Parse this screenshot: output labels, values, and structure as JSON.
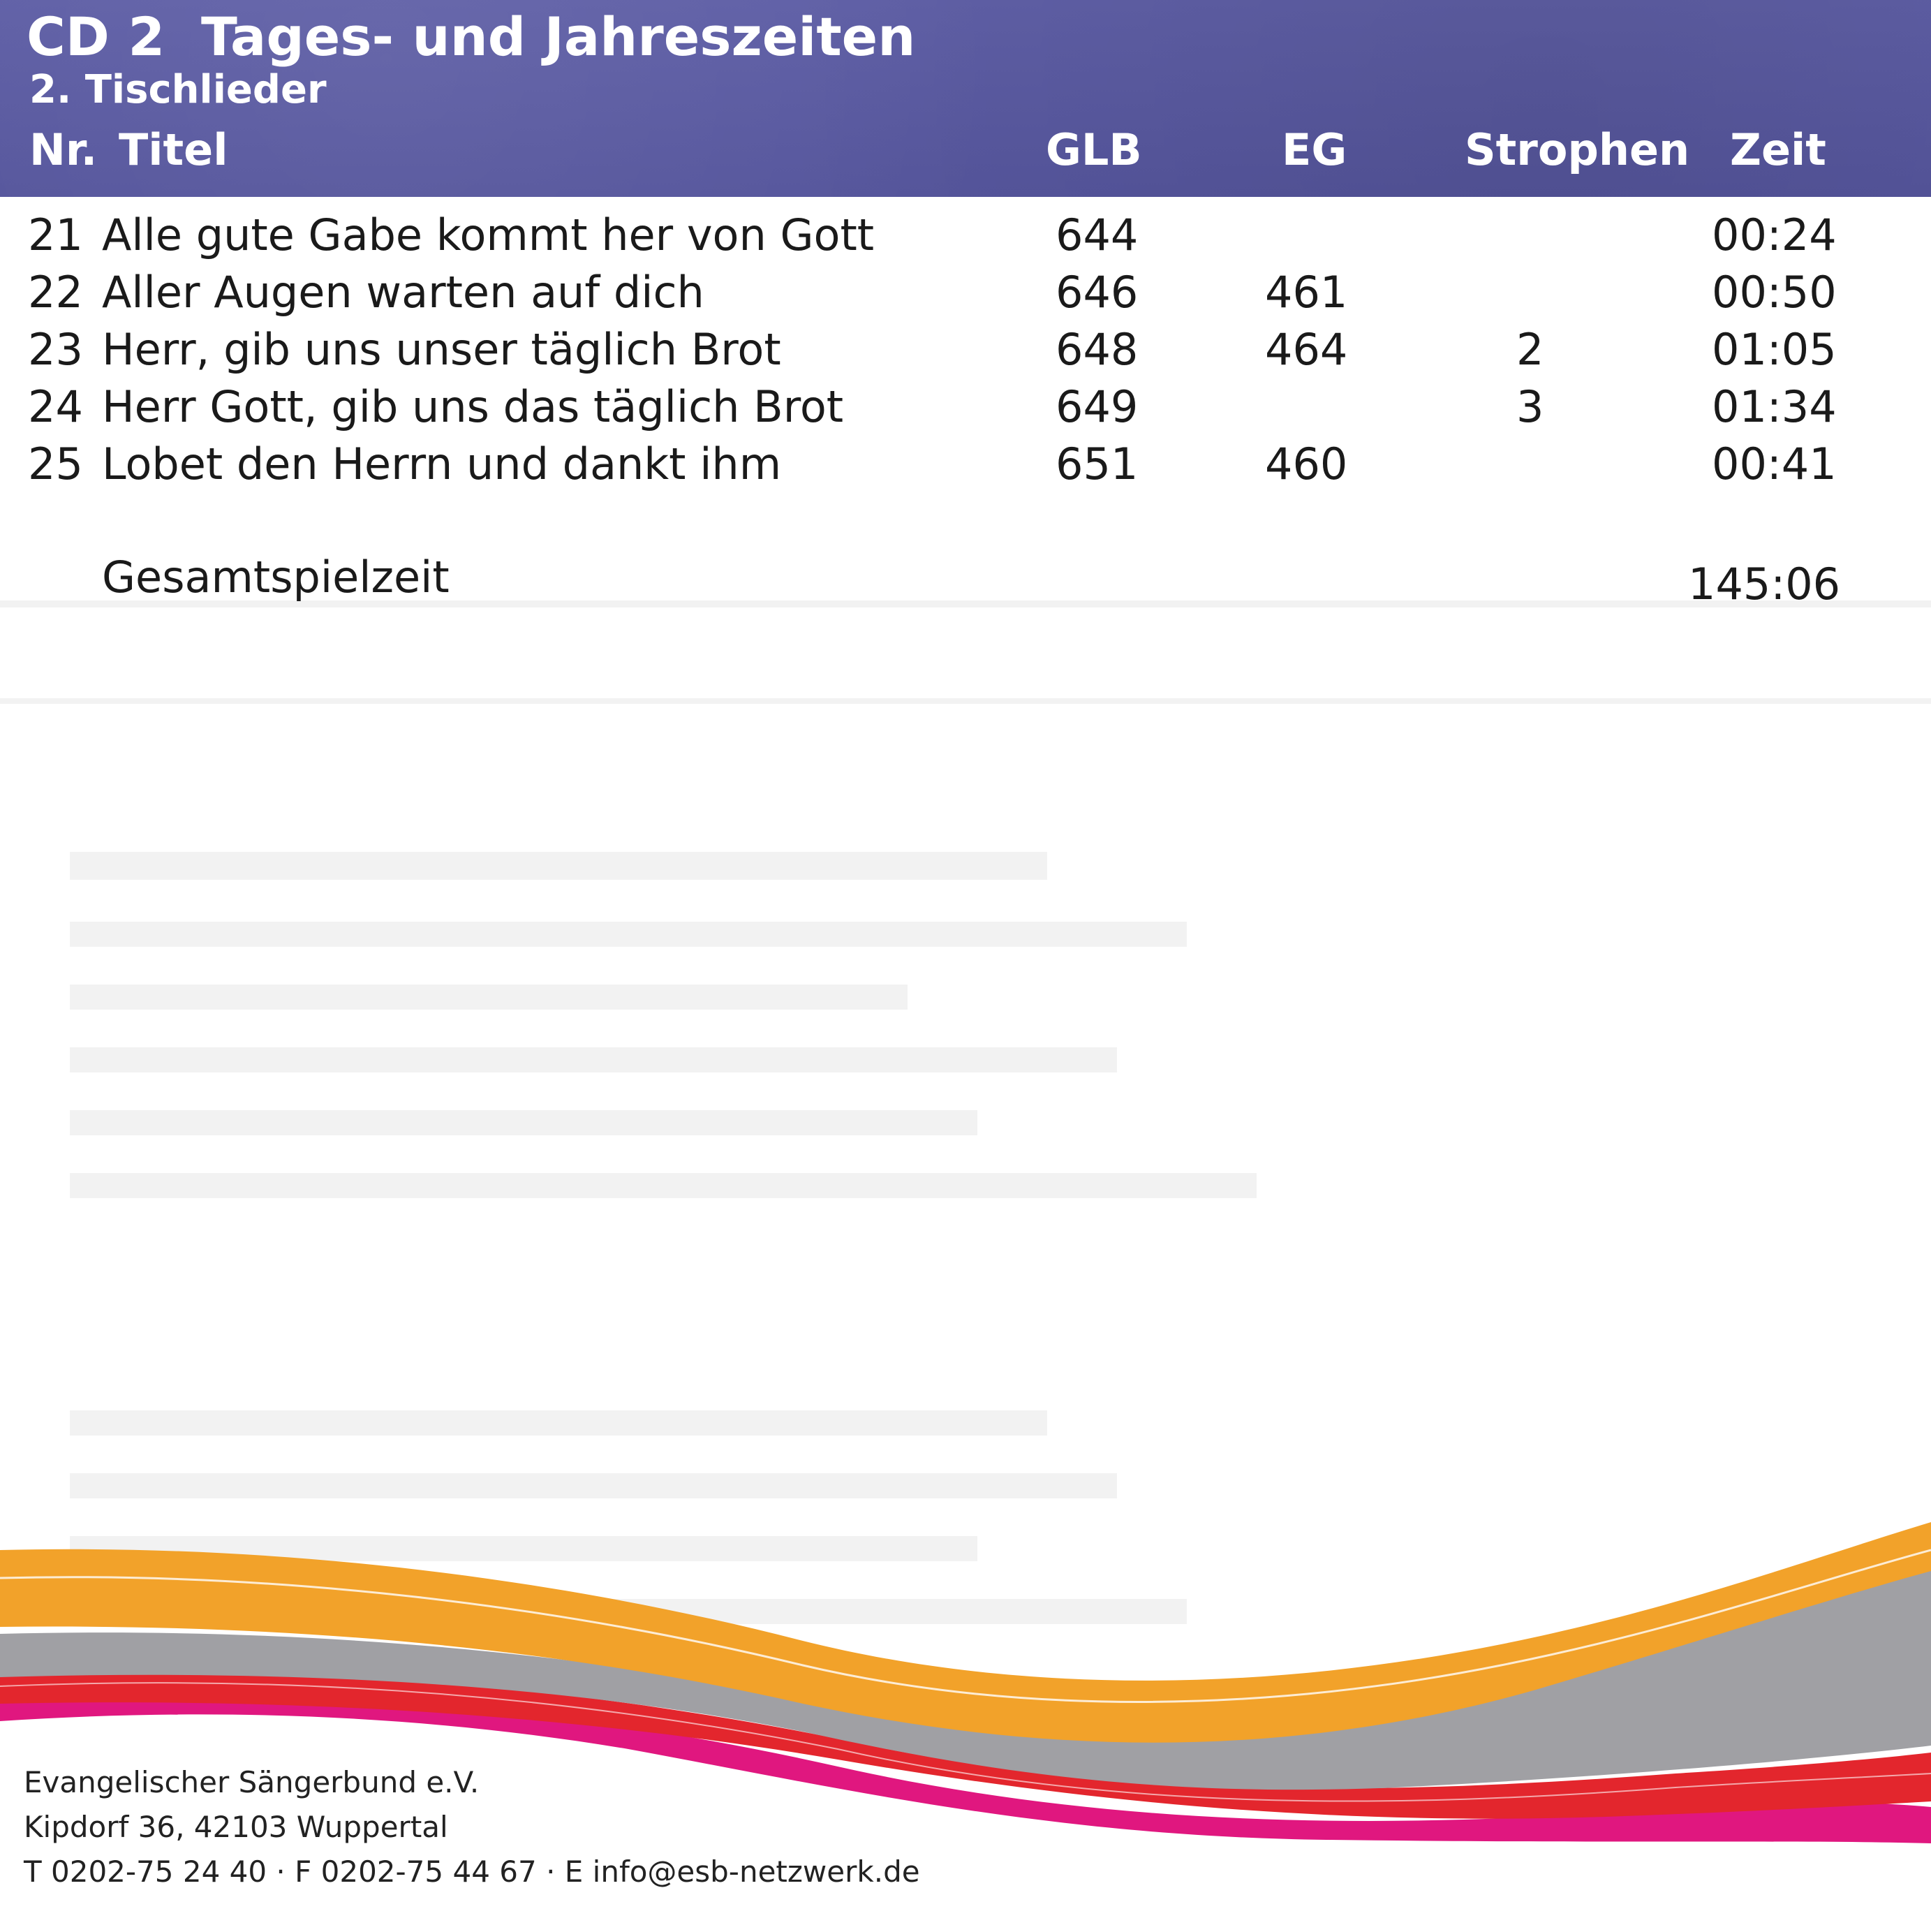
{
  "header": {
    "cd": "CD 2",
    "title": "Tages- und Jahreszeiten",
    "subtitle": "2. Tischlieder",
    "columns": {
      "nr": "Nr.",
      "titel": "Titel",
      "glb": "GLB",
      "eg": "EG",
      "strophen": "Strophen",
      "zeit": "Zeit"
    },
    "background_color": "#5a5aa0"
  },
  "tracks": [
    {
      "nr": "21",
      "title": "Alle gute Gabe kommt her von Gott",
      "glb": "644",
      "eg": "",
      "strophen": "",
      "zeit": "00:24"
    },
    {
      "nr": "22",
      "title": "Aller Augen warten auf dich",
      "glb": "646",
      "eg": "461",
      "strophen": "",
      "zeit": "00:50"
    },
    {
      "nr": "23",
      "title": "Herr, gib uns unser täglich Brot",
      "glb": "648",
      "eg": "464",
      "strophen": "2",
      "zeit": "01:05"
    },
    {
      "nr": "24",
      "title": "Herr Gott, gib uns das täglich Brot",
      "glb": "649",
      "eg": "",
      "strophen": "3",
      "zeit": "01:34"
    },
    {
      "nr": "25",
      "title": "Lobet den Herrn und dankt ihm",
      "glb": "651",
      "eg": "460",
      "strophen": "",
      "zeit": "00:41"
    }
  ],
  "total": {
    "label": "Gesamtspielzeit",
    "value": "145:06"
  },
  "footer": {
    "line1": "Evangelischer Sängerbund e.V.",
    "line2": "Kipdorf 36, 42103 Wuppertal",
    "line3": "T 0202-75 24 40 · F 0202-75 44 67 · E info@esb-netzwerk.de"
  },
  "wave_colors": {
    "orange": "#f2a22a",
    "gray": "#a0a0a4",
    "red": "#e3262d",
    "magenta": "#e0177f"
  }
}
